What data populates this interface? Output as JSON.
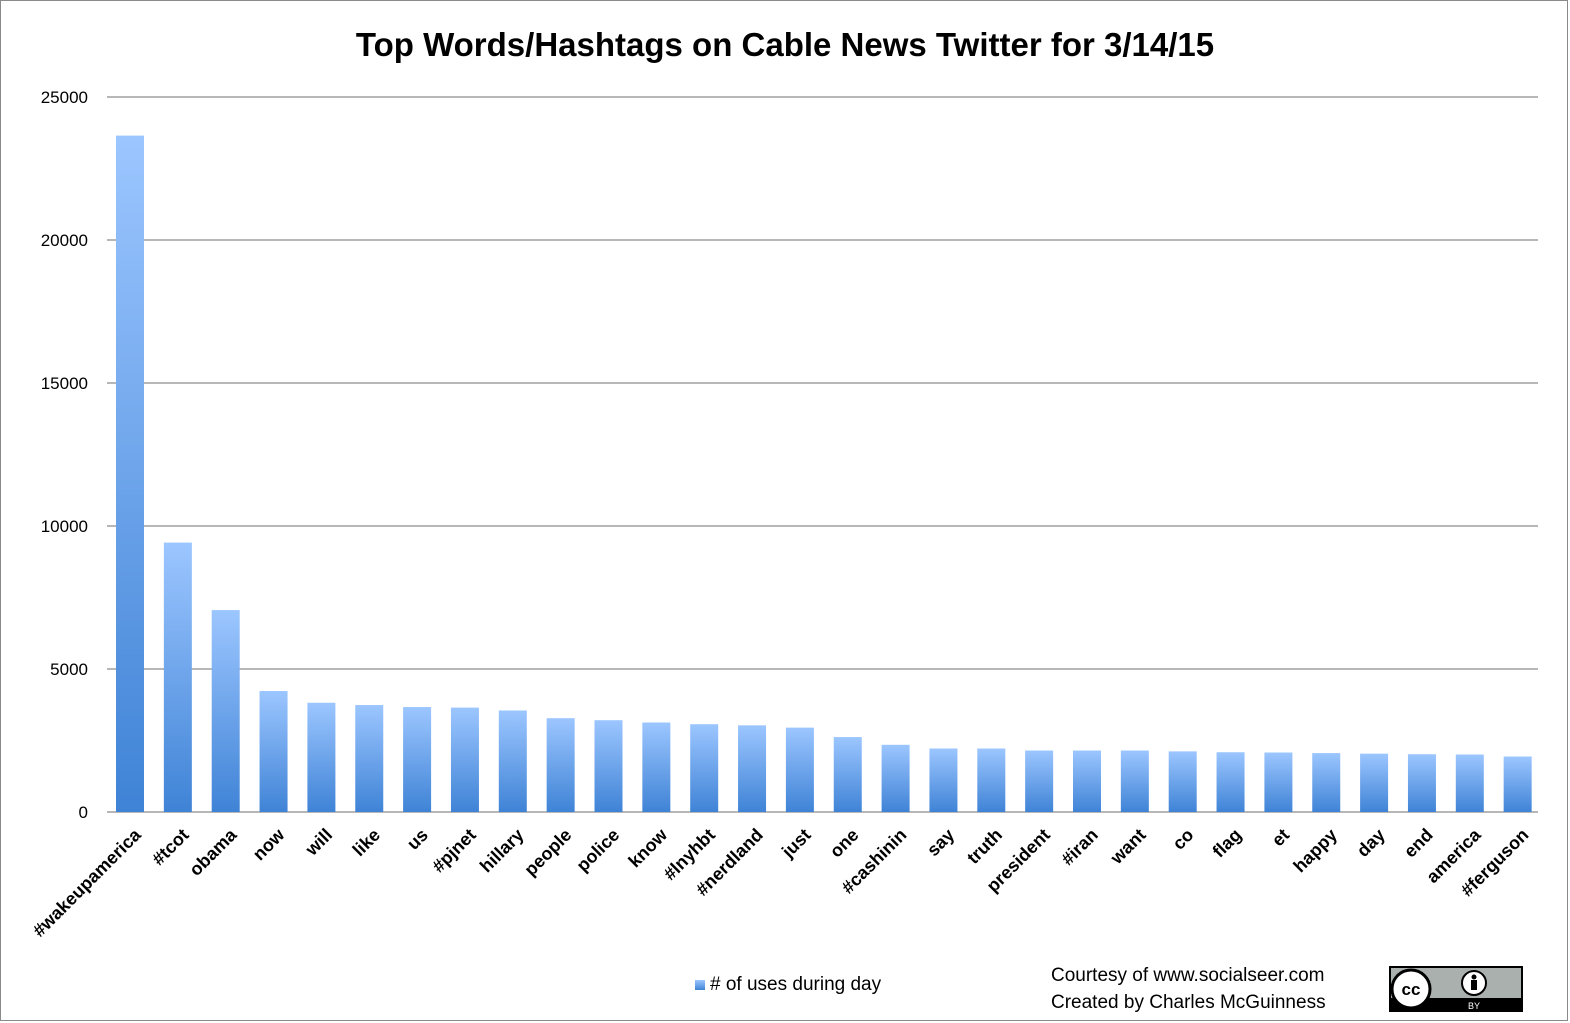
{
  "chart_data": {
    "type": "bar",
    "title": "Top Words/Hashtags on Cable News Twitter for 3/14/15",
    "xlabel": "",
    "ylabel": "",
    "ylim": [
      0,
      25000
    ],
    "yticks": [
      0,
      5000,
      10000,
      15000,
      20000,
      25000
    ],
    "grid": true,
    "legend_position": "bottom",
    "categories": [
      "#wakeupamerica",
      "#tcot",
      "obama",
      "now",
      "will",
      "like",
      "us",
      "#pjnet",
      "hillary",
      "people",
      "police",
      "know",
      "#lnyhbt",
      "#nerdland",
      "just",
      "one",
      "#cashinin",
      "say",
      "truth",
      "president",
      "#iran",
      "want",
      "co",
      "flag",
      "et",
      "happy",
      "day",
      "end",
      "america",
      "#ferguson"
    ],
    "series": [
      {
        "name": "# of uses during day",
        "values": [
          23650,
          9420,
          7060,
          4230,
          3820,
          3740,
          3670,
          3650,
          3550,
          3280,
          3210,
          3130,
          3070,
          3030,
          2950,
          2620,
          2350,
          2220,
          2220,
          2150,
          2150,
          2150,
          2120,
          2090,
          2080,
          2060,
          2040,
          2020,
          2010,
          1940
        ]
      }
    ]
  },
  "credits": {
    "line1": "Courtesy of www.socialseer.com",
    "line2": "Created by Charles McGuinness"
  },
  "badge": {
    "icon": "cc-by-icon",
    "label": "BY"
  },
  "colors": {
    "bar_top": "#9cc6ff",
    "bar_bottom": "#3f83d6",
    "grid": "#8c8c8c"
  }
}
